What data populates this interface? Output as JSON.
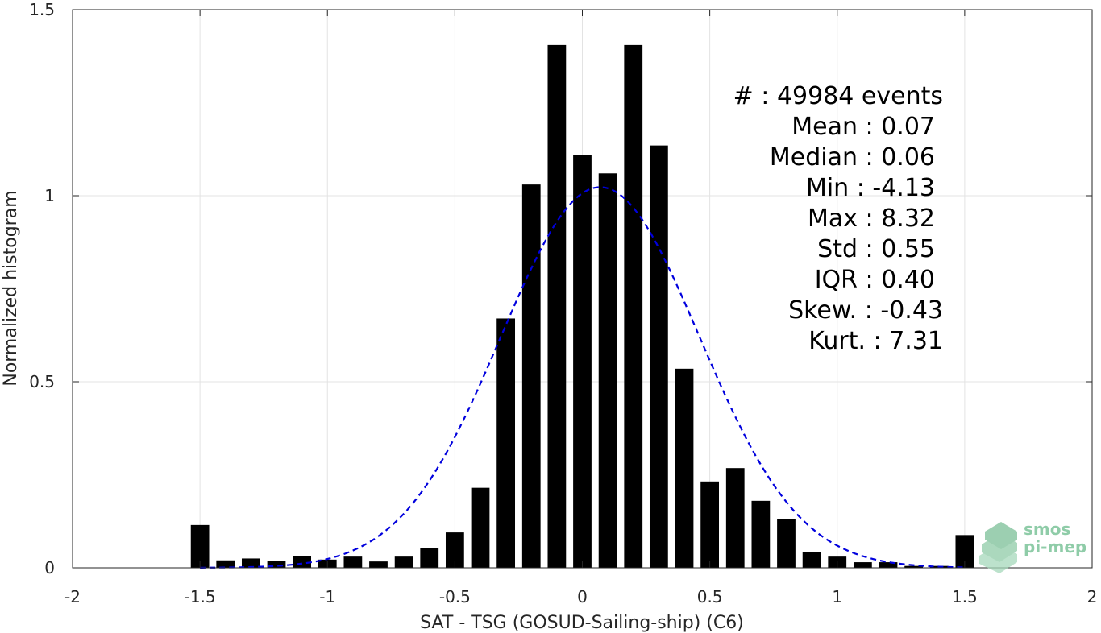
{
  "chart_data": {
    "type": "bar",
    "title": "",
    "xlabel": "SAT - TSG (GOSUD-Sailing-ship) (C6)",
    "ylabel": "Normalized histogram",
    "xlim": [
      -2,
      2
    ],
    "ylim": [
      0,
      1.5
    ],
    "x_ticks": [
      "-2",
      "-1.5",
      "-1",
      "-0.5",
      "0",
      "0.5",
      "1",
      "1.5",
      "2"
    ],
    "y_ticks": [
      "0",
      "0.5",
      "1",
      "1.5"
    ],
    "grid": true,
    "bar_color": "#000000",
    "fit_color": "#0000dd",
    "bin_centers": [
      -1.5,
      -1.4,
      -1.3,
      -1.2,
      -1.1,
      -1.0,
      -0.9,
      -0.8,
      -0.7,
      -0.6,
      -0.5,
      -0.4,
      -0.3,
      -0.2,
      -0.1,
      0.0,
      0.1,
      0.2,
      0.3,
      0.4,
      0.5,
      0.6,
      0.7,
      0.8,
      0.9,
      1.0,
      1.1,
      1.2,
      1.3,
      1.4,
      1.5
    ],
    "values": [
      0.115,
      0.02,
      0.025,
      0.018,
      0.032,
      0.022,
      0.03,
      0.017,
      0.03,
      0.052,
      0.095,
      0.215,
      0.67,
      1.03,
      1.405,
      1.11,
      1.06,
      1.405,
      1.135,
      0.535,
      0.232,
      0.268,
      0.18,
      0.13,
      0.042,
      0.03,
      0.015,
      0.015,
      0.005,
      0.005,
      0.088
    ],
    "fit": {
      "type": "normal",
      "mean": 0.07,
      "std": 0.39,
      "style": "dashed"
    }
  },
  "stats": {
    "events": "#  : 49984 events",
    "mean": "Mean : 0.07",
    "median": "Median : 0.06",
    "min": "Min : -4.13",
    "max": "Max : 8.32",
    "std": "Std : 0.55",
    "iqr": "IQR : 0.40",
    "skew": "Skew. : -0.43",
    "kurt": "Kurt. : 7.31"
  },
  "logo": {
    "line1": "smos",
    "line2": "pi-mep"
  }
}
